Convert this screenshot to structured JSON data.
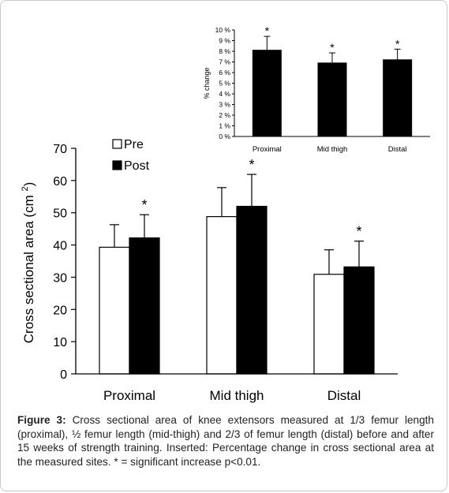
{
  "chart_data": [
    {
      "type": "bar",
      "categories": [
        "Proximal",
        "Mid thigh",
        "Distal"
      ],
      "series": [
        {
          "name": "Pre",
          "values": [
            39.3,
            48.8,
            30.9
          ],
          "errors": [
            7.0,
            9.0,
            7.6
          ],
          "color": "#ffffff"
        },
        {
          "name": "Post",
          "values": [
            42.2,
            52.0,
            33.2
          ],
          "errors": [
            7.2,
            9.9,
            8.0
          ],
          "color": "#000000"
        }
      ],
      "title": "",
      "xlabel": "",
      "ylabel": "Cross sectional area (cm",
      "ylabel_superscript": "2",
      "ylabel_close": ")",
      "ylim": [
        0,
        70
      ],
      "yticks": [
        0,
        10,
        20,
        30,
        40,
        50,
        60,
        70
      ],
      "significance": [
        "*",
        "*",
        "*"
      ],
      "legend": "top-left",
      "grid": false
    },
    {
      "type": "bar",
      "categories": [
        "Proximal",
        "Mid thigh",
        "Distal"
      ],
      "series": [
        {
          "values": [
            8.1,
            6.9,
            7.2
          ],
          "errors": [
            1.3,
            0.95,
            1.0
          ],
          "color": "#000000"
        }
      ],
      "title": "",
      "xlabel": "",
      "ylabel": "% change",
      "ylim": [
        0,
        10
      ],
      "yticks": [
        "0 %",
        "1 %",
        "2 %",
        "3 %",
        "4 %",
        "5 %",
        "6 %",
        "7 %",
        "8 %",
        "9 %",
        "10 %"
      ],
      "significance": [
        "*",
        "*",
        "*"
      ],
      "grid": false
    }
  ],
  "caption": {
    "label": "Figure 3:",
    "text": " Cross sectional area of knee extensors measured at 1/3 femur length (proximal), ½ femur length (mid-thigh) and 2/3 of femur length (distal) before and after 15 weeks of strength training. Inserted: Percentage change in cross sectional area at the measured sites. * = significant increase p<0.01."
  }
}
